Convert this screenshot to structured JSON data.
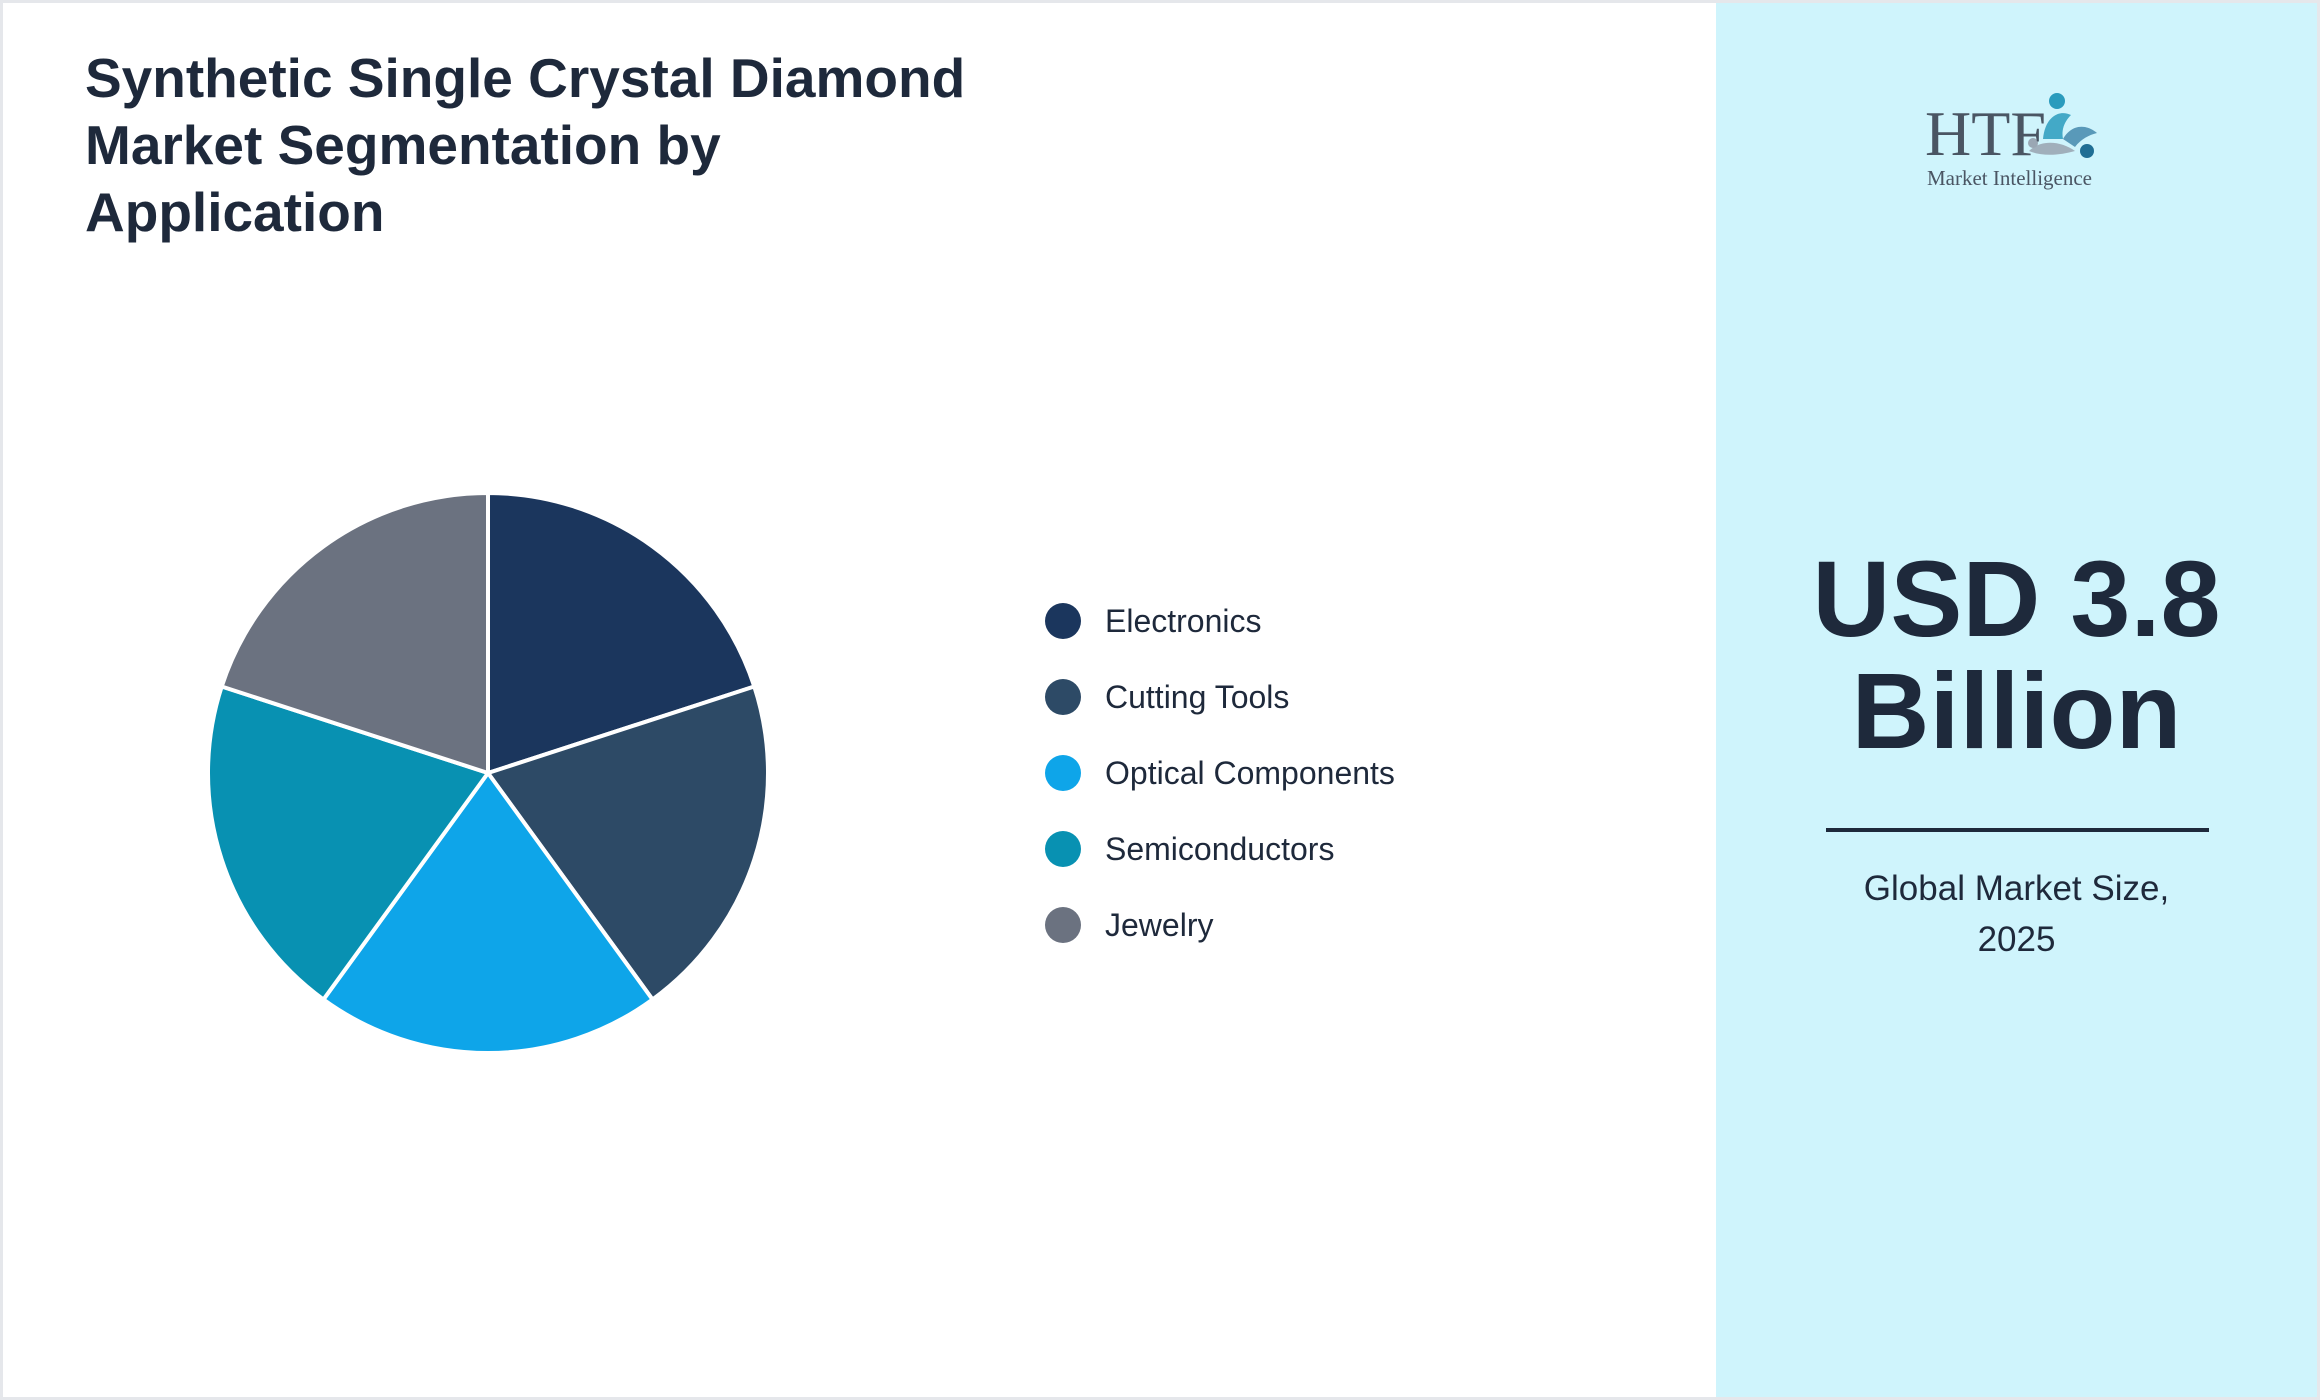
{
  "title": "Synthetic Single Crystal Diamond Market Segmentation by Application",
  "chart_data": {
    "type": "pie",
    "categories": [
      "Electronics",
      "Cutting Tools",
      "Optical Components",
      "Semiconductors",
      "Jewelry"
    ],
    "values": [
      20,
      20,
      20,
      20,
      20
    ],
    "colors": [
      "#1b365d",
      "#2d4a66",
      "#0ea5e9",
      "#0891b2",
      "#6b7280"
    ],
    "legend_position": "right"
  },
  "logo": {
    "main": "HTF",
    "sub": "Market Intelligence"
  },
  "market": {
    "value_line1": "USD 3.8",
    "value_line2": "Billion",
    "caption_line1": "Global Market Size,",
    "caption_line2": "2025"
  }
}
